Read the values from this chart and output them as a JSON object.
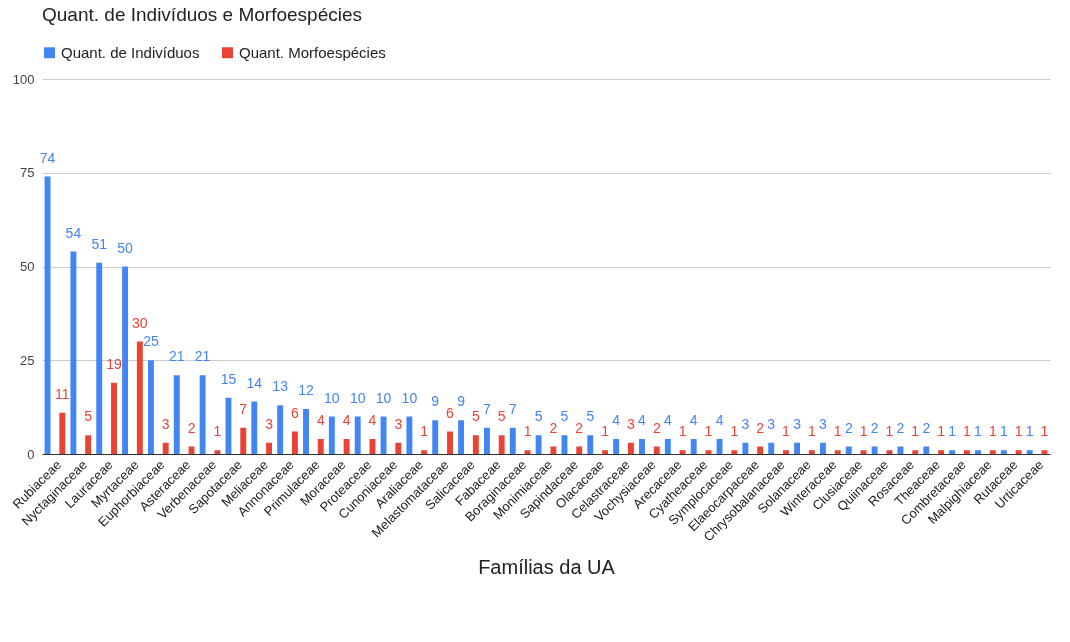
{
  "chart_data": {
    "type": "bar",
    "title": "Quant. de Indivíduos e Morfoespécies",
    "xlabel": "Famílias da UA",
    "categories": [
      "Rubiaceae",
      "Nyctaginaceae",
      "Lauraceae",
      "Myrtaceae",
      "Euphorbiaceae",
      "Asteraceae",
      "Verbenaceae",
      "Sapotaceae",
      "Meliaceae",
      "Annonaceae",
      "Primulaceae",
      "Moraceae",
      "Proteaceae",
      "Cunoniaceae",
      "Araliaceae",
      "Melastomataceae",
      "Salicaceae",
      "Fabaceae",
      "Boraginaceae",
      "Monimiaceae",
      "Sapindaceae",
      "Olacaceae",
      "Celastraceae",
      "Vochysiaceae",
      "Arecaceae",
      "Cyatheaceae",
      "Symplocaceae",
      "Elaeocarpaceae",
      "Chrysobalanaceae",
      "Solanaceae",
      "Winteraceae",
      "Clusiaceae",
      "Quiinaceae",
      "Rosaceae",
      "Theaceae",
      "Combretaceae",
      "Malpighiaceae",
      "Rutaceae",
      "Urticaceae"
    ],
    "series": [
      {
        "name": "Quant. de Indivíduos",
        "color": "#4285f4",
        "values": [
          74,
          54,
          51,
          50,
          25,
          21,
          21,
          15,
          14,
          13,
          12,
          10,
          10,
          10,
          10,
          9,
          9,
          7,
          7,
          5,
          5,
          5,
          4,
          4,
          4,
          4,
          4,
          3,
          3,
          3,
          3,
          2,
          2,
          2,
          2,
          1,
          1,
          1,
          1
        ]
      },
      {
        "name": "Quant. Morfoespécies",
        "color": "#ea4335",
        "values": [
          11,
          5,
          19,
          30,
          3,
          2,
          1,
          7,
          3,
          6,
          4,
          4,
          4,
          3,
          1,
          6,
          5,
          5,
          1,
          2,
          2,
          1,
          3,
          2,
          1,
          1,
          1,
          2,
          1,
          1,
          1,
          1,
          1,
          1,
          1,
          1,
          1,
          1,
          1
        ]
      }
    ],
    "ylim": [
      0,
      100
    ],
    "yticks": [
      0,
      25,
      50,
      75,
      100
    ],
    "grid": "y",
    "legend": "top",
    "data_labels": true
  }
}
